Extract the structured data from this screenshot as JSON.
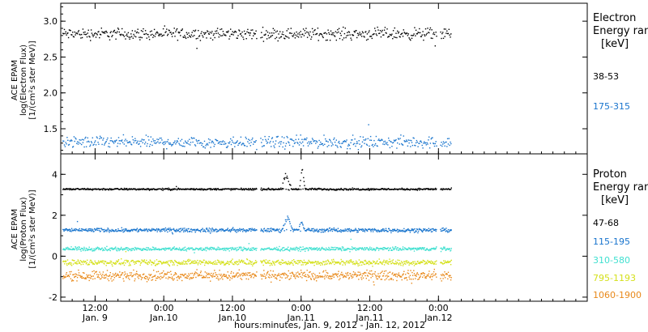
{
  "chart_data": {
    "type": "scatter",
    "xlabel": "hours:minutes, Jan.  9, 2012 - Jan. 12, 2012",
    "xlim": [
      0,
      92
    ],
    "x_unit": "hours",
    "x_ticks": [
      {
        "x": 6,
        "time": "12:00",
        "day": "Jan. 9"
      },
      {
        "x": 18,
        "time": "0:00",
        "day": "Jan.10"
      },
      {
        "x": 30,
        "time": "12:00",
        "day": "Jan.10"
      },
      {
        "x": 42,
        "time": "0:00",
        "day": "Jan.11"
      },
      {
        "x": 54,
        "time": "12:00",
        "day": "Jan.11"
      },
      {
        "x": 66,
        "time": "0:00",
        "day": "Jan.12"
      }
    ],
    "x_minor_step": 2,
    "panels": [
      {
        "ylabel": [
          "ACE EPAM",
          "log(Electron Flux)",
          "[1/(cm²s ster MeV)]"
        ],
        "ylim": [
          1.15,
          3.25
        ],
        "yticks": [
          1.5,
          2.0,
          2.5,
          3.0
        ],
        "ytick_labels": [
          "1.5",
          "2.0",
          "2.5",
          "3.0"
        ],
        "legend": {
          "title": [
            "Electron",
            "Energy ran",
            "[keV]"
          ]
        },
        "series": [
          {
            "name": "38-53",
            "color": "#000000",
            "base": 2.83,
            "scatter": 0.07,
            "step": 0.12,
            "gaps": [
              [
                34.2,
                34.8
              ],
              [
                65.6,
                66.2
              ]
            ],
            "features": []
          },
          {
            "name": "175-315",
            "color": "#1874cd",
            "base": 1.32,
            "scatter": 0.07,
            "step": 0.12,
            "gaps": [
              [
                34.2,
                34.8
              ],
              [
                65.6,
                66.2
              ]
            ],
            "features": []
          }
        ]
      },
      {
        "ylabel": [
          "ACE EPAM",
          "log(Proton Flux)",
          "[1/(cm²s ster MeV)]"
        ],
        "ylim": [
          -2.2,
          5.0
        ],
        "yticks": [
          -2,
          0,
          2,
          4
        ],
        "ytick_labels": [
          "-2",
          "0",
          "2",
          "4"
        ],
        "legend": {
          "title": [
            "Proton",
            "Energy ran",
            "[keV]"
          ]
        },
        "series": [
          {
            "name": "47-68",
            "color": "#000000",
            "base": 3.3,
            "scatter": 0.04,
            "step": 0.09,
            "gaps": [
              [
                34.2,
                34.8
              ],
              [
                65.6,
                66.2
              ]
            ],
            "features": [
              {
                "x0": 38.3,
                "x1": 40.3,
                "peak": 4.2
              },
              {
                "x0": 41.6,
                "x1": 42.6,
                "peak": 4.6
              }
            ]
          },
          {
            "name": "115-195",
            "color": "#1874cd",
            "base": 1.3,
            "scatter": 0.08,
            "step": 0.09,
            "gaps": [
              [
                34.2,
                34.8
              ],
              [
                65.6,
                66.2
              ]
            ],
            "features": [
              {
                "x0": 38.5,
                "x1": 40.5,
                "peak": 2.1
              },
              {
                "x0": 41.4,
                "x1": 42.5,
                "peak": 1.9
              }
            ]
          },
          {
            "name": "310-580",
            "color": "#40e0d0",
            "base": 0.38,
            "scatter": 0.08,
            "step": 0.09,
            "gaps": [
              [
                34.2,
                34.8
              ],
              [
                65.6,
                66.2
              ]
            ],
            "features": []
          },
          {
            "name": "795-1193",
            "color": "#d4e01a",
            "base": -0.28,
            "scatter": 0.12,
            "step": 0.09,
            "gaps": [
              [
                34.2,
                34.8
              ],
              [
                65.6,
                66.2
              ]
            ],
            "features": []
          },
          {
            "name": "1060-1900",
            "color": "#e8891a",
            "base": -0.92,
            "scatter": 0.2,
            "step": 0.09,
            "gaps": [
              [
                34.2,
                34.8
              ],
              [
                65.6,
                66.2
              ]
            ],
            "features": []
          }
        ]
      }
    ]
  }
}
